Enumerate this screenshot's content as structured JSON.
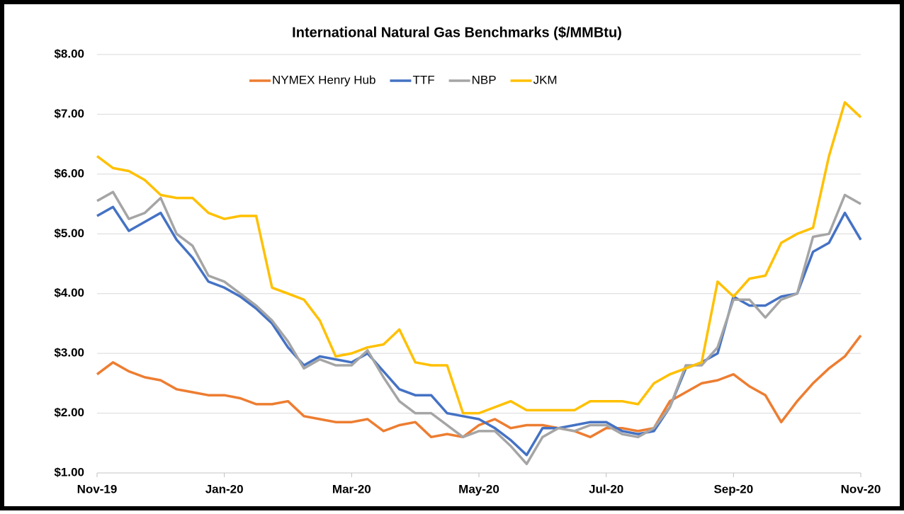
{
  "chart_data": {
    "type": "line",
    "title": "International Natural Gas Benchmarks ($/MMBtu)",
    "categories": [
      "Nov-19",
      null,
      null,
      null,
      null,
      null,
      null,
      null,
      "Jan-20",
      null,
      null,
      null,
      null,
      null,
      null,
      null,
      "Mar-20",
      null,
      null,
      null,
      null,
      null,
      null,
      null,
      "May-20",
      null,
      null,
      null,
      null,
      null,
      null,
      null,
      "Jul-20",
      null,
      null,
      null,
      null,
      null,
      null,
      null,
      "Sep-20",
      null,
      null,
      null,
      null,
      null,
      null,
      null,
      "Nov-20"
    ],
    "series": [
      {
        "name": "NYMEX Henry Hub",
        "color": "#ed7d31",
        "values": [
          2.65,
          2.85,
          2.7,
          2.6,
          2.55,
          2.4,
          2.35,
          2.3,
          2.3,
          2.25,
          2.15,
          2.15,
          2.2,
          1.95,
          1.9,
          1.85,
          1.85,
          1.9,
          1.7,
          1.8,
          1.85,
          1.6,
          1.65,
          1.6,
          1.8,
          1.9,
          1.75,
          1.8,
          1.8,
          1.75,
          1.7,
          1.6,
          1.75,
          1.75,
          1.7,
          1.75,
          2.2,
          2.35,
          2.5,
          2.55,
          2.65,
          2.45,
          2.3,
          1.85,
          2.2,
          2.5,
          2.75,
          2.95,
          3.3
        ]
      },
      {
        "name": "TTF",
        "color": "#4472c4",
        "values": [
          5.3,
          5.45,
          5.05,
          5.2,
          5.35,
          4.9,
          4.6,
          4.2,
          4.1,
          3.95,
          3.75,
          3.5,
          3.1,
          2.8,
          2.95,
          2.9,
          2.85,
          3.0,
          2.7,
          2.4,
          2.3,
          2.3,
          2.0,
          1.95,
          1.9,
          1.75,
          1.55,
          1.3,
          1.75,
          1.75,
          1.8,
          1.85,
          1.85,
          1.7,
          1.65,
          1.7,
          2.1,
          2.75,
          2.85,
          3.0,
          3.95,
          3.8,
          3.8,
          3.95,
          4.0,
          4.7,
          4.85,
          5.35,
          4.9
        ]
      },
      {
        "name": "NBP",
        "color": "#a5a5a5",
        "values": [
          5.55,
          5.7,
          5.25,
          5.35,
          5.6,
          5.0,
          4.8,
          4.3,
          4.2,
          4.0,
          3.8,
          3.55,
          3.2,
          2.75,
          2.9,
          2.8,
          2.8,
          3.05,
          2.6,
          2.2,
          2.0,
          2.0,
          1.8,
          1.6,
          1.7,
          1.7,
          1.45,
          1.15,
          1.6,
          1.75,
          1.7,
          1.8,
          1.8,
          1.65,
          1.6,
          1.75,
          2.1,
          2.8,
          2.8,
          3.1,
          3.9,
          3.9,
          3.6,
          3.9,
          4.0,
          4.95,
          5.0,
          5.65,
          5.5
        ]
      },
      {
        "name": "JKM",
        "color": "#ffc000",
        "values": [
          6.3,
          6.1,
          6.05,
          5.9,
          5.65,
          5.6,
          5.6,
          5.35,
          5.25,
          5.3,
          5.3,
          4.1,
          4.0,
          3.9,
          3.55,
          2.95,
          3.0,
          3.1,
          3.15,
          3.4,
          2.85,
          2.8,
          2.8,
          2.0,
          2.0,
          2.1,
          2.2,
          2.05,
          2.05,
          2.05,
          2.05,
          2.2,
          2.2,
          2.2,
          2.15,
          2.5,
          2.65,
          2.75,
          2.85,
          4.2,
          3.95,
          4.25,
          4.3,
          4.85,
          5.0,
          5.1,
          6.3,
          7.2,
          6.95
        ]
      }
    ],
    "ylim": [
      1,
      8
    ],
    "yticks": [
      {
        "value": 1,
        "label": "$1.00"
      },
      {
        "value": 2,
        "label": "$2.00"
      },
      {
        "value": 3,
        "label": "$3.00"
      },
      {
        "value": 4,
        "label": "$4.00"
      },
      {
        "value": 5,
        "label": "$5.00"
      },
      {
        "value": 6,
        "label": "$6.00"
      },
      {
        "value": 7,
        "label": "$7.00"
      },
      {
        "value": 8,
        "label": "$8.00"
      }
    ],
    "grid": true,
    "legend": "top"
  }
}
